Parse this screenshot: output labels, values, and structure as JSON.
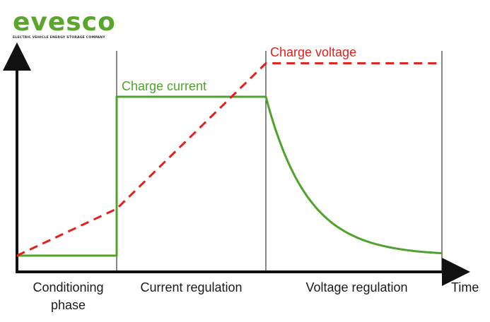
{
  "logo": {
    "wordmark": "evesco",
    "tagline": "ELECTRIC VEHICLE ENERGY STORAGE COMPANY",
    "color": "#5aa52c"
  },
  "chart_data": {
    "type": "line",
    "title": "",
    "xlabel": "Time",
    "ylabel": "",
    "grid": false,
    "legend": "none",
    "phases": [
      {
        "label_lines": [
          "Conditioning",
          "phase"
        ]
      },
      {
        "label_lines": [
          "Current regulation"
        ]
      },
      {
        "label_lines": [
          "Voltage regulation"
        ]
      }
    ],
    "series": [
      {
        "name": "Charge current",
        "color": "#4fa32c",
        "style": "solid",
        "x": [
          0,
          1,
          1,
          2.5,
          2.5,
          3.0,
          3.5,
          4.0,
          4.5
        ],
        "y": [
          0.05,
          0.05,
          1.0,
          1.0,
          1.0,
          0.45,
          0.2,
          0.08,
          0.05
        ]
      },
      {
        "name": "Charge voltage",
        "color": "#e3201b",
        "style": "dashed",
        "x": [
          0,
          1,
          2.5,
          4.5
        ],
        "y": [
          0.05,
          0.33,
          1.2,
          1.2
        ]
      }
    ]
  }
}
